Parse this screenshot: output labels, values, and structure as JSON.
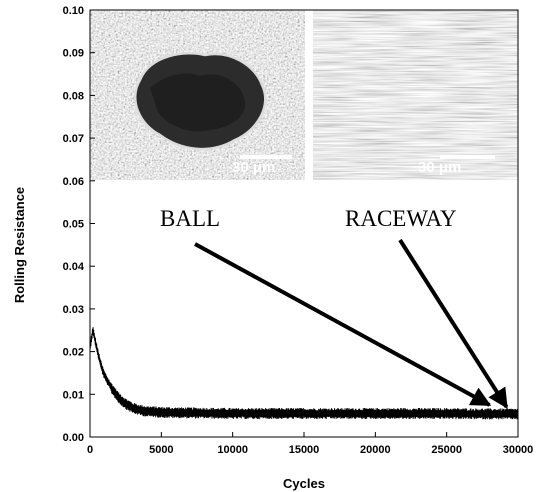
{
  "chart_data": {
    "type": "line",
    "xlabel": "Cycles",
    "ylabel": "Rolling Resistance",
    "xlim": [
      0,
      30000
    ],
    "ylim": [
      0,
      0.1
    ],
    "xticks": [
      "0",
      "5000",
      "10000",
      "15000",
      "20000",
      "25000",
      "30000"
    ],
    "yticks": [
      "0.00",
      "0.01",
      "0.02",
      "0.03",
      "0.04",
      "0.05",
      "0.06",
      "0.07",
      "0.08",
      "0.09",
      "0.10"
    ],
    "grid": false,
    "series": [
      {
        "x": [
          0,
          200,
          400,
          600,
          800,
          1000,
          1500,
          2000,
          2500,
          3000,
          3500,
          4000,
          5000,
          6000,
          8000,
          10000,
          15000,
          20000,
          25000,
          28000,
          30000
        ],
        "y": [
          0.021,
          0.025,
          0.022,
          0.019,
          0.0165,
          0.0145,
          0.0115,
          0.0092,
          0.0078,
          0.0068,
          0.0063,
          0.006,
          0.0058,
          0.0057,
          0.0056,
          0.0055,
          0.0055,
          0.0055,
          0.0055,
          0.0054,
          0.0054
        ],
        "noise_amplitude": 0.0013,
        "color": "#000000"
      }
    ],
    "annotations": [
      {
        "text": "BALL",
        "arrow_to": [
          28000,
          0.0075
        ]
      },
      {
        "text": "RACEWAY",
        "arrow_to": [
          29200,
          0.007
        ]
      }
    ],
    "insets": [
      {
        "name": "ball-micrograph",
        "scale_label": "30 μm"
      },
      {
        "name": "raceway-micrograph",
        "scale_label": "30 μm"
      }
    ]
  },
  "colors": {
    "line": "#000000",
    "background": "#ffffff"
  }
}
